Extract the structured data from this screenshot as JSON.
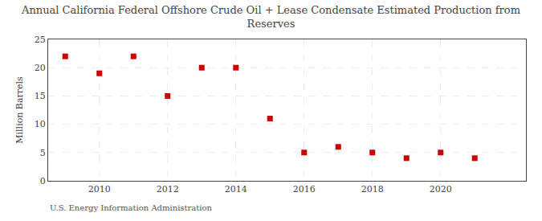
{
  "chart_data": {
    "type": "scatter",
    "title": "Annual California Federal Offshore Crude Oil + Lease Condensate Estimated Production from\nReserves",
    "ylabel": "Million Barrels",
    "annotations": [
      "U.S. Energy Information Administration"
    ],
    "x": [
      2009,
      2010,
      2011,
      2012,
      2013,
      2014,
      2015,
      2016,
      2017,
      2018,
      2019,
      2020,
      2021
    ],
    "values": [
      22,
      19,
      22,
      15,
      20,
      20,
      11,
      5,
      6,
      5,
      4,
      5,
      4
    ],
    "color": "#cc0000",
    "marker": "square",
    "xlim": [
      2008.5,
      2022.5
    ],
    "ylim": [
      0,
      25
    ],
    "xticks": [
      2010,
      2012,
      2014,
      2016,
      2018,
      2020
    ],
    "yticks": [
      0,
      5,
      10,
      15,
      20,
      25
    ],
    "grid": true
  }
}
